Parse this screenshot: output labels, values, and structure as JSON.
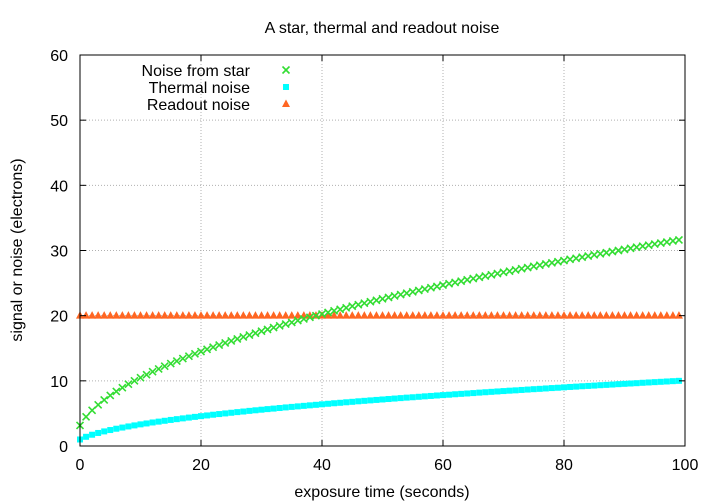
{
  "chart_data": {
    "type": "scatter",
    "title": "A star, thermal and readout noise",
    "xlabel": "exposure time (seconds)",
    "ylabel": "signal or noise (electrons)",
    "xlim": [
      0,
      100
    ],
    "ylim": [
      0,
      60
    ],
    "x_ticks": [
      0,
      20,
      40,
      60,
      80,
      100
    ],
    "y_ticks": [
      0,
      10,
      20,
      30,
      40,
      50,
      60
    ],
    "grid": true,
    "legend_position": "top-left",
    "x": [
      0,
      1,
      2,
      3,
      4,
      5,
      6,
      7,
      8,
      9,
      10,
      11,
      12,
      13,
      14,
      15,
      16,
      17,
      18,
      19,
      20,
      21,
      22,
      23,
      24,
      25,
      26,
      27,
      28,
      29,
      30,
      31,
      32,
      33,
      34,
      35,
      36,
      37,
      38,
      39,
      40,
      41,
      42,
      43,
      44,
      45,
      46,
      47,
      48,
      49,
      50,
      51,
      52,
      53,
      54,
      55,
      56,
      57,
      58,
      59,
      60,
      61,
      62,
      63,
      64,
      65,
      66,
      67,
      68,
      69,
      70,
      71,
      72,
      73,
      74,
      75,
      76,
      77,
      78,
      79,
      80,
      81,
      82,
      83,
      84,
      85,
      86,
      87,
      88,
      89,
      90,
      91,
      92,
      93,
      94,
      95,
      96,
      97,
      98,
      99
    ],
    "series": [
      {
        "name": "Noise from star",
        "marker": "x",
        "color": "#33dd33",
        "values": [
          3.16,
          4.47,
          5.48,
          6.32,
          7.07,
          7.75,
          8.37,
          8.94,
          9.49,
          10.0,
          10.49,
          10.95,
          11.4,
          11.83,
          12.25,
          12.65,
          13.04,
          13.42,
          13.78,
          14.14,
          14.49,
          14.83,
          15.17,
          15.49,
          15.81,
          16.12,
          16.43,
          16.73,
          17.03,
          17.32,
          17.61,
          17.89,
          18.17,
          18.44,
          18.71,
          18.97,
          19.24,
          19.49,
          19.75,
          20.0,
          20.25,
          20.49,
          20.74,
          20.98,
          21.21,
          21.45,
          21.68,
          21.91,
          22.14,
          22.36,
          22.58,
          22.8,
          23.02,
          23.24,
          23.45,
          23.66,
          23.87,
          24.08,
          24.29,
          24.49,
          24.7,
          24.9,
          25.1,
          25.3,
          25.5,
          25.69,
          25.88,
          26.08,
          26.27,
          26.46,
          26.65,
          26.83,
          27.02,
          27.2,
          27.39,
          27.57,
          27.75,
          27.93,
          28.11,
          28.28,
          28.46,
          28.64,
          28.81,
          28.98,
          29.15,
          29.33,
          29.5,
          29.66,
          29.83,
          30.0,
          30.17,
          30.33,
          30.5,
          30.66,
          30.82,
          30.98,
          31.14,
          31.3,
          31.46,
          31.62
        ]
      },
      {
        "name": "Thermal noise",
        "marker": "square",
        "color": "#00ffff",
        "values": [
          1.0,
          1.41,
          1.73,
          2.0,
          2.24,
          2.45,
          2.65,
          2.83,
          3.0,
          3.16,
          3.32,
          3.46,
          3.61,
          3.74,
          3.87,
          4.0,
          4.12,
          4.24,
          4.36,
          4.47,
          4.58,
          4.69,
          4.8,
          4.9,
          5.0,
          5.1,
          5.2,
          5.29,
          5.39,
          5.48,
          5.57,
          5.66,
          5.74,
          5.83,
          5.92,
          6.0,
          6.08,
          6.16,
          6.24,
          6.32,
          6.4,
          6.48,
          6.56,
          6.63,
          6.71,
          6.78,
          6.86,
          6.93,
          7.0,
          7.07,
          7.14,
          7.21,
          7.28,
          7.35,
          7.42,
          7.48,
          7.55,
          7.62,
          7.68,
          7.75,
          7.81,
          7.87,
          7.94,
          8.0,
          8.06,
          8.12,
          8.19,
          8.25,
          8.31,
          8.37,
          8.43,
          8.49,
          8.54,
          8.6,
          8.66,
          8.72,
          8.77,
          8.83,
          8.89,
          8.94,
          9.0,
          9.06,
          9.11,
          9.17,
          9.22,
          9.27,
          9.33,
          9.38,
          9.43,
          9.49,
          9.54,
          9.59,
          9.64,
          9.7,
          9.75,
          9.8,
          9.85,
          9.9,
          9.95,
          10.0
        ]
      },
      {
        "name": "Readout noise",
        "marker": "triangle",
        "color": "#ff6622",
        "values": [
          20,
          20,
          20,
          20,
          20,
          20,
          20,
          20,
          20,
          20,
          20,
          20,
          20,
          20,
          20,
          20,
          20,
          20,
          20,
          20,
          20,
          20,
          20,
          20,
          20,
          20,
          20,
          20,
          20,
          20,
          20,
          20,
          20,
          20,
          20,
          20,
          20,
          20,
          20,
          20,
          20,
          20,
          20,
          20,
          20,
          20,
          20,
          20,
          20,
          20,
          20,
          20,
          20,
          20,
          20,
          20,
          20,
          20,
          20,
          20,
          20,
          20,
          20,
          20,
          20,
          20,
          20,
          20,
          20,
          20,
          20,
          20,
          20,
          20,
          20,
          20,
          20,
          20,
          20,
          20,
          20,
          20,
          20,
          20,
          20,
          20,
          20,
          20,
          20,
          20,
          20,
          20,
          20,
          20,
          20,
          20,
          20,
          20,
          20,
          20
        ]
      }
    ]
  }
}
